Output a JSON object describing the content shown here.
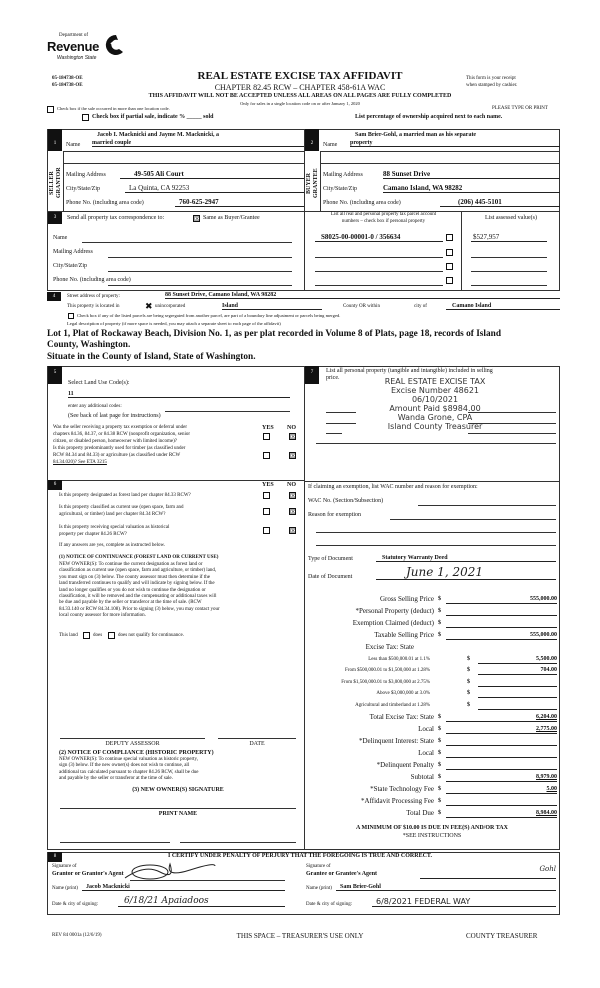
{
  "header": {
    "dept": "Department of",
    "revenue": "Revenue",
    "state": "Washington State",
    "code1": "05-184738-OE",
    "code2": "05-184738-OE",
    "title": "REAL ESTATE EXCISE TAX AFFIDAVIT",
    "chapter": "CHAPTER 82.45 RCW – CHAPTER 458-61A WAC",
    "receipt1": "This form is your receipt",
    "receipt2": "when stamped by cashier.",
    "warning": "THIS AFFIDAVIT WILL NOT BE ACCEPTED UNLESS ALL AREAS ON ALL PAGES ARE FULLY COMPLETED",
    "only_for": "Only for sales in a single location code on or after January 1, 2020",
    "multi_location": "Check box if the sale occurred in more than one location code.",
    "type_print": "PLEASE TYPE OR PRINT",
    "partial": "Check box if partial sale, indicate % _____ sold",
    "list_pct": "List percentage of ownership acquired next to each name."
  },
  "seller": {
    "num": "1",
    "side": "SELLER GRANTOR",
    "name_label": "Name",
    "name1": "Jacob I. Macknicki and Jayme M. Macknicki, a",
    "name2": "married couple",
    "mail_label": "Mailing Address",
    "mail": "49-505 Ali Court",
    "city_label": "City/State/Zip",
    "city": "La Quinta, CA 92253",
    "phone_label": "Phone No. (including area code)",
    "phone": "760-625-2947"
  },
  "buyer": {
    "num": "2",
    "side": "BUYER GRANTEE",
    "name_label": "Name",
    "name1": "Sam Brier-Gohl, a married man as his separate",
    "name2": "property",
    "mail_label": "Mailing Address",
    "mail": "88 Sunset Drive",
    "city_label": "City/State/Zip",
    "city": "Camano Island, WA 98282",
    "phone_label": "Phone No. (including area code)",
    "phone": "(206) 445-5101"
  },
  "sec3": {
    "num": "3",
    "send": "Send all property tax correspondence to:",
    "same": "Same as Buyer/Grantee",
    "same_checked": true,
    "name": "Name",
    "mail": "Mailing Address",
    "city": "City/State/Zip",
    "phone": "Phone No. (including area code)",
    "parcel_head1": "List all real and personal property tax parcel account",
    "parcel_head2": "numbers – check box if personal property",
    "assessed_head": "List assessed value(s)",
    "parcel": "S8025-00-00001-0 / 356634",
    "assessed": "$527,957"
  },
  "sec4": {
    "num": "4",
    "street_label": "Street address of property:",
    "street": "88 Sunset Drive, Camano Island, WA  98282",
    "located": "This property is located in",
    "unincorporated": "unincorporated",
    "county": "Island",
    "county_label": "County OR  within",
    "city_of": "city of",
    "city": "Camano Island",
    "segregated": "Check box if any of the listed parcels are being segregated from another parcel, are part of a boundary line adjustment or parcels being merged.",
    "legal_label": "Legal description of property (if more space is needed, you may attach a separate sheet to each page of the affidavit)",
    "legal1": "Lot 1, Plat of Rockaway Beach, Division No. 1, as per plat recorded in Volume 8 of Plats, page 18, records of Island",
    "legal2": "County, Washington.",
    "legal3": "Situate in the County of Island, State of Washington."
  },
  "sec5": {
    "num": "5",
    "land_use": "Select Land Use Code(s):",
    "code": "11",
    "additional": "enter any additional codes:",
    "see_back": "(See back of last page for instructions)",
    "yes": "YES",
    "no": "NO",
    "q1a": "Was the seller receiving a property tax exemption or deferral under",
    "q1b": "chapters 84.36, 84.37, or 84.38 RCW (nonprofit organization, senior",
    "q1c": "citizen, or disabled person, homeowner with limited income)?",
    "q2a": "Is this property predominantly used for timber (as classified under",
    "q2b": "RCW 84.34 and 84.33) or agriculture (as classified under RCW",
    "q2c": "84.34.020)? See ETA 3215"
  },
  "sec6": {
    "num": "6",
    "yes": "YES",
    "no": "NO",
    "q1": "Is this property designated as forest land per chapter 84.33 RCW?",
    "q2a": "Is this property classified as current use (open space, farm and",
    "q2b": "agricultural, or timber) land per chapter 84.34 RCW?",
    "q3a": "Is this property receiving special valuation as historical",
    "q3b": "property per chapter 84.26 RCW?",
    "if_yes": "If any answers are yes, complete as instructed below.",
    "n1_title": "(1) NOTICE OF CONTINUANCE (FOREST LAND OR CURRENT USE)",
    "n1_lines": [
      "NEW OWNER(S): To continue the current designation as forest land or",
      "classification as current use (open space, farm and agriculture, or timber) land,",
      "you must sign on (3) below.  The county assessor must then determine if the",
      "land transferred continues to qualify and will indicate by signing below.  If the",
      "land no longer qualifies or you do not wish to continue the designation or",
      "classification, it will be removed and the compensating or additional taxes will",
      "be due and payable by the seller or transferor at the time of sale.  (RCW",
      "84.33.140 or RCW 84.34.108). Prior to signing (3) below, you may contact your",
      "local county assessor for more information."
    ],
    "this_land": "This land",
    "does": "does",
    "does_not": "does not qualify for continuance.",
    "deputy": "DEPUTY ASSESSOR",
    "date": "DATE",
    "n2_title": "(2) NOTICE OF COMPLIANCE (HISTORIC PROPERTY)",
    "n2_lines": [
      "NEW OWNER(S):  To continue special valuation as historic property,",
      "sign (3) below.  If the new owner(s) does not wish to continue, all",
      "additional tax calculated pursuant to chapter 84.26 RCW, shall be due",
      "and payable by the seller or transferor at the time of sale."
    ],
    "n3": "(3)  NEW OWNER(S) SIGNATURE",
    "print_name": "PRINT NAME"
  },
  "sec7": {
    "num": "7",
    "personal1": "List all personal property (tangible and intangible) included in selling",
    "personal2": "price.",
    "stamp": [
      "REAL ESTATE EXCISE TAX",
      "Excise Number 48621",
      "06/10/2021",
      "Amount Paid $8984.00",
      "Wanda Grone, CPA",
      "Island County Treasurer"
    ],
    "exempt": "If claiming an exemption, list WAC number and reason for exemption:",
    "wac": "WAC No. (Section/Subsection)",
    "reason": "Reason for exemption",
    "doc_type_label": "Type of Document",
    "doc_type": "Statutory Warranty Deed",
    "doc_date_label": "Date of Document",
    "doc_date": "June 1, 2021"
  },
  "tax": {
    "rows": [
      {
        "label": "Gross Selling Price",
        "value": "555,000.00",
        "big": true
      },
      {
        "label": "*Personal Property (deduct)",
        "value": "",
        "big": true
      },
      {
        "label": "Exemption Claimed (deduct)",
        "value": "",
        "big": true
      },
      {
        "label": "Taxable Selling Price",
        "value": "555,000.00",
        "big": true
      },
      {
        "label": "Excise Tax:  State",
        "value": null,
        "big": true
      },
      {
        "label": "Less than $500,000.01 at 1.1%",
        "value": "5,500.00",
        "big": false
      },
      {
        "label": "From $500,000.01 to $1,500,000 at 1.28%",
        "value": "704.00",
        "big": false
      },
      {
        "label": "From $1,500,000.01 to $3,000,000 at 2.75%",
        "value": "",
        "big": false
      },
      {
        "label": "Above $3,000,000 at 3.0%",
        "value": "",
        "big": false
      },
      {
        "label": "Agricultural and timberland at 1.28%",
        "value": "",
        "big": false
      },
      {
        "label": "Total Excise Tax: State",
        "value": "6,204.00",
        "big": true
      },
      {
        "label": "Local",
        "value": "2,775.00",
        "big": true
      },
      {
        "label": "*Delinquent Interest: State",
        "value": "",
        "big": true
      },
      {
        "label": "Local",
        "value": "",
        "big": true
      },
      {
        "label": "*Delinquent Penalty",
        "value": "",
        "big": true
      },
      {
        "label": "Subtotal",
        "value": "8,979.00",
        "big": true
      },
      {
        "label": "*State Technology Fee",
        "value": "5.00",
        "big": true
      },
      {
        "label": "*Affidavit Processing Fee",
        "value": "",
        "big": true
      },
      {
        "label": "Total Due",
        "value": "8,984.00",
        "big": true
      }
    ],
    "currency": "$",
    "minimum": "A MINIMUM OF $10.00 IS DUE IN FEE(S) AND/OR TAX",
    "see": "*SEE INSTRUCTIONS"
  },
  "sec8": {
    "num": "8",
    "certify": "I CERTIFY UNDER PENALTY OF PERJURY THAT THE FOREGOING IS TRUE AND CORRECT.",
    "sig_of": "Signature of",
    "grantor_agent": "Grantor or Grantor's Agent",
    "grantee_agent": "Grantee or Grantee's Agent",
    "name_print": "Name (print)",
    "grantor_name": "Jacob  Macknicki",
    "grantee_name": "Sam  Brier-Gohl",
    "date_city": "Date & city of signing:",
    "grantor_date": "6/18/21  Apaiadoos",
    "grantee_date": "6/8/2021   FEDERAL WAY",
    "grantee_sig": "Gohl"
  },
  "footer": {
    "rev": "REV 84 0001a (12/6/19)",
    "space": "THIS SPACE – TREASURER'S USE ONLY",
    "treasurer": "COUNTY TREASURER"
  }
}
